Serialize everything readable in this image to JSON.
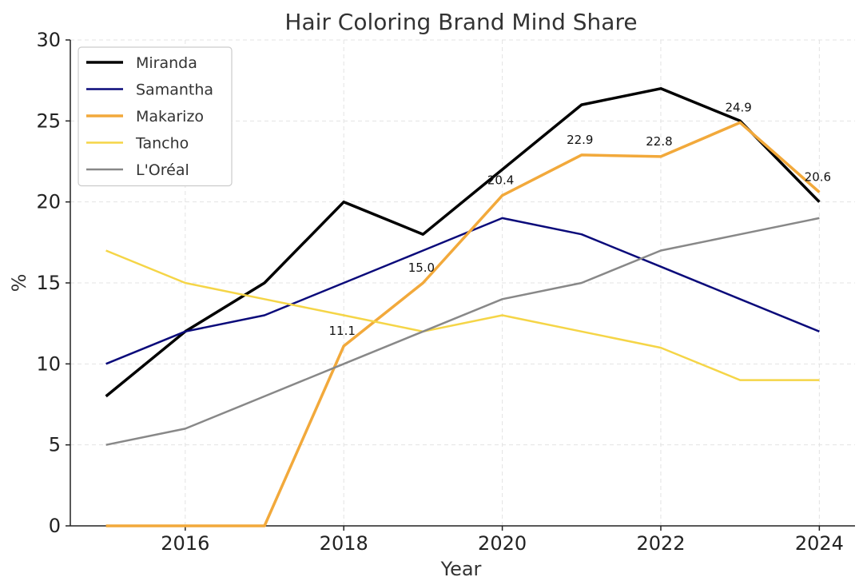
{
  "chart_data": {
    "type": "line",
    "title": "Hair Coloring Brand Mind Share",
    "xlabel": "Year",
    "ylabel": "%",
    "x": [
      2015,
      2016,
      2017,
      2018,
      2019,
      2020,
      2021,
      2022,
      2023,
      2024
    ],
    "xlim": [
      2014.55,
      2024.45
    ],
    "ylim": [
      0,
      30
    ],
    "xticks": [
      2016,
      2018,
      2020,
      2022,
      2024
    ],
    "yticks": [
      0,
      5,
      10,
      15,
      20,
      25,
      30
    ],
    "grid": true,
    "legend_position": "top-left",
    "series": [
      {
        "name": "Miranda",
        "color": "#000000",
        "width": 3.5,
        "values": [
          8,
          12,
          15,
          20,
          18,
          22,
          26,
          27,
          25,
          20
        ]
      },
      {
        "name": "Samantha",
        "color": "#0a0a7a",
        "width": 2.5,
        "values": [
          10,
          12,
          13,
          15,
          17,
          19,
          18,
          16,
          14,
          12
        ]
      },
      {
        "name": "Makarizo",
        "color": "#f2a93b",
        "width": 3.5,
        "values": [
          0,
          0,
          0,
          11.1,
          15.0,
          20.4,
          22.9,
          22.8,
          24.9,
          20.6
        ]
      },
      {
        "name": "Tancho",
        "color": "#f5d547",
        "width": 2.5,
        "values": [
          17,
          15,
          14,
          13,
          12,
          13,
          12,
          11,
          9,
          9
        ]
      },
      {
        "name": "L'Oréal",
        "color": "#888888",
        "width": 2.5,
        "values": [
          5,
          6,
          8,
          10,
          12,
          14,
          15,
          17,
          18,
          19
        ]
      }
    ],
    "annotations": [
      {
        "x": 2018,
        "y": 11.1,
        "text": "11.1"
      },
      {
        "x": 2019,
        "y": 15.0,
        "text": "15.0"
      },
      {
        "x": 2020,
        "y": 20.4,
        "text": "20.4"
      },
      {
        "x": 2021,
        "y": 22.9,
        "text": "22.9"
      },
      {
        "x": 2022,
        "y": 22.8,
        "text": "22.8"
      },
      {
        "x": 2023,
        "y": 24.9,
        "text": "24.9"
      },
      {
        "x": 2024,
        "y": 20.6,
        "text": "20.6"
      }
    ]
  }
}
